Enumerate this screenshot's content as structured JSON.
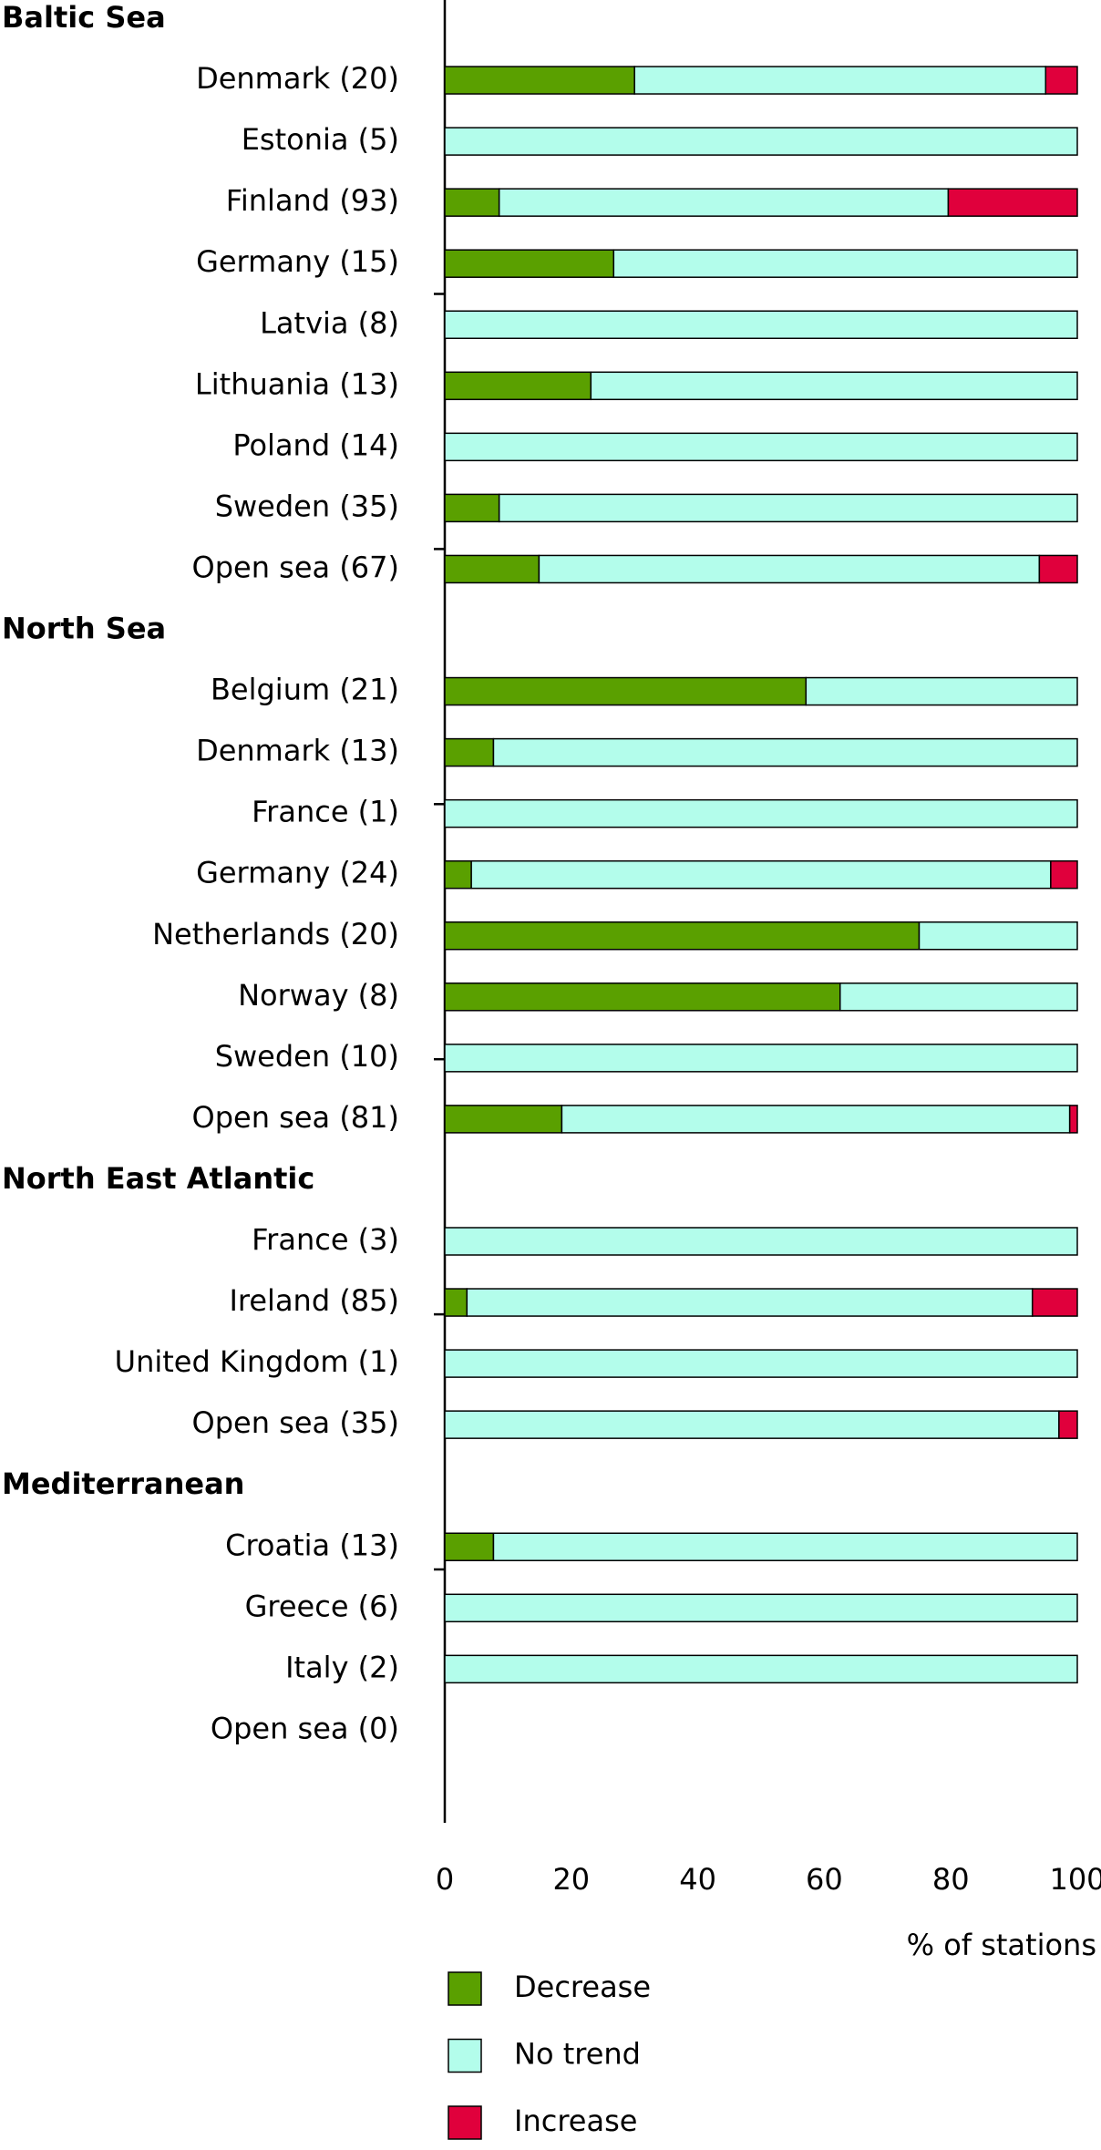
{
  "chart_data": {
    "type": "stacked-barh",
    "xlabel": "% of stations",
    "xlim": [
      0,
      100
    ],
    "xticks": [
      0,
      20,
      40,
      60,
      80,
      100
    ],
    "series": [
      {
        "name": "Decrease",
        "color": "#5aa000"
      },
      {
        "name": "No trend",
        "color": "#b3fdeb"
      },
      {
        "name": "Increase",
        "color": "#e0003c"
      }
    ],
    "groups": [
      {
        "name": "Baltic Sea",
        "categories": [
          "Denmark (20)",
          "Estonia (5)",
          "Finland (93)",
          "Germany (15)",
          "Latvia (8)",
          "Lithuania (13)",
          "Poland (14)",
          "Sweden (35)",
          "Open sea (67)"
        ],
        "series": [
          {
            "values": [
              30,
              0,
              8.6,
              26.7,
              0,
              23.1,
              0,
              8.6,
              14.9
            ]
          },
          {
            "values": [
              65,
              100,
              71,
              73.3,
              100,
              76.9,
              100,
              91.4,
              79.1
            ]
          },
          {
            "values": [
              5,
              0,
              20.4,
              0,
              0,
              0,
              0,
              0,
              6
            ]
          }
        ]
      },
      {
        "name": "North Sea",
        "categories": [
          "Belgium (21)",
          "Denmark (13)",
          "France (1)",
          "Germany (24)",
          "Netherlands (20)",
          "Norway (8)",
          "Sweden (10)",
          "Open sea (81)"
        ],
        "series": [
          {
            "values": [
              57.1,
              7.7,
              0,
              4.2,
              75,
              62.5,
              0,
              18.5
            ]
          },
          {
            "values": [
              42.9,
              92.3,
              100,
              91.6,
              25,
              37.5,
              100,
              80.3
            ]
          },
          {
            "values": [
              0,
              0,
              0,
              4.2,
              0,
              0,
              0,
              1.2
            ]
          }
        ]
      },
      {
        "name": "North East Atlantic",
        "categories": [
          "France (3)",
          "Ireland (85)",
          "United Kingdom (1)",
          "Open sea (35)"
        ],
        "series": [
          {
            "values": [
              0,
              3.5,
              0,
              0
            ]
          },
          {
            "values": [
              100,
              89.4,
              100,
              97.1
            ]
          },
          {
            "values": [
              0,
              7.1,
              0,
              2.9
            ]
          }
        ]
      },
      {
        "name": "Mediterranean",
        "categories": [
          "Croatia (13)",
          "Greece (6)",
          "Italy (2)",
          "Open sea (0)"
        ],
        "series": [
          {
            "values": [
              7.7,
              0,
              0,
              null
            ]
          },
          {
            "values": [
              92.3,
              100,
              100,
              null
            ]
          },
          {
            "values": [
              0,
              0,
              0,
              null
            ]
          }
        ]
      }
    ]
  }
}
